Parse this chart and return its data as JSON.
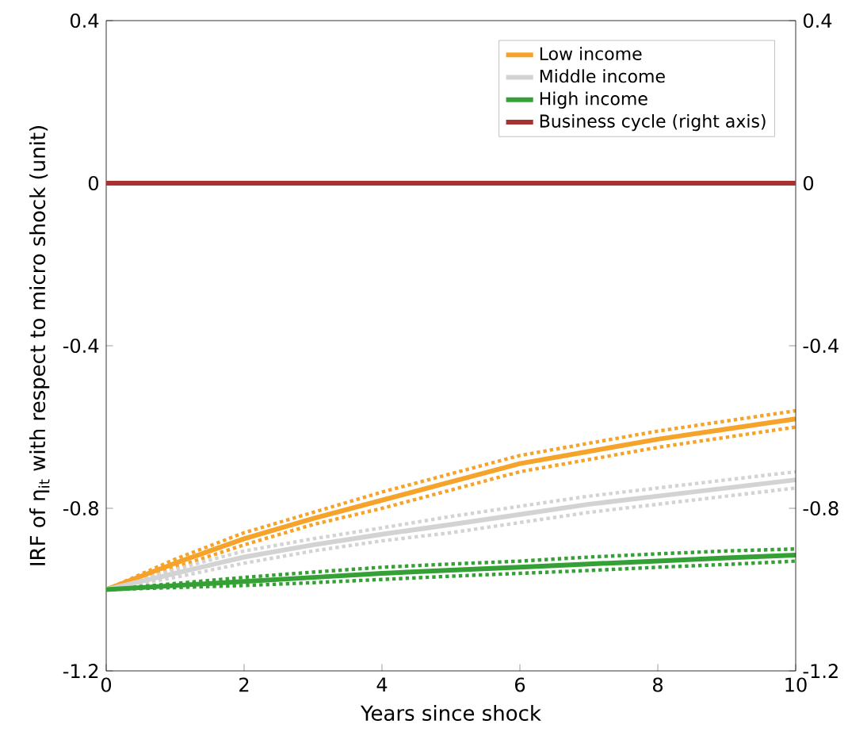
{
  "chart_data": {
    "type": "line",
    "xlabel": "Years since shock",
    "ylabel": "IRF of η$_{it}$ with respect to micro shock (unit)",
    "x": [
      0,
      1,
      2,
      3,
      4,
      5,
      6,
      7,
      8,
      9,
      10
    ],
    "xlim": [
      0,
      10
    ],
    "xticks": [
      0,
      2,
      4,
      6,
      8,
      10
    ],
    "ylim": [
      -1.2,
      0.4
    ],
    "yticks": [
      0.4,
      0,
      -0.4,
      -0.8,
      -1.2
    ],
    "y2lim": [
      -1.2,
      0.4
    ],
    "y2ticks": [
      0.4,
      0,
      -0.4,
      -0.8,
      -1.2
    ],
    "legend": "top right",
    "series": [
      {
        "name": "Low income",
        "color": "#f5a32a",
        "values": [
          -1,
          -0.935,
          -0.875,
          -0.825,
          -0.78,
          -0.735,
          -0.69,
          -0.66,
          -0.63,
          -0.605,
          -0.58
        ]
      },
      {
        "name": "Middle income",
        "color": "#d3d3d3",
        "values": [
          -1,
          -0.96,
          -0.92,
          -0.89,
          -0.864,
          -0.84,
          -0.815,
          -0.79,
          -0.77,
          -0.75,
          -0.73
        ]
      },
      {
        "name": "High income",
        "color": "#35a035",
        "values": [
          -1,
          -0.99,
          -0.98,
          -0.97,
          -0.96,
          -0.952,
          -0.945,
          -0.937,
          -0.93,
          -0.922,
          -0.915
        ]
      },
      {
        "name": "Business cycle (right axis)",
        "color": "#a83232",
        "axis": "y2",
        "values": [
          0,
          0,
          0,
          0,
          0,
          0,
          0,
          0,
          0,
          0,
          0
        ]
      },
      {
        "color": "#f5a32a",
        "line_style": "dotted",
        "values": [
          -1,
          -0.945,
          -0.89,
          -0.84,
          -0.8,
          -0.755,
          -0.71,
          -0.68,
          -0.65,
          -0.625,
          -0.6
        ]
      },
      {
        "color": "#f5a32a",
        "line_style": "dotted",
        "values": [
          -1,
          -0.925,
          -0.86,
          -0.81,
          -0.76,
          -0.715,
          -0.67,
          -0.64,
          -0.61,
          -0.585,
          -0.56
        ]
      },
      {
        "color": "#d3d3d3",
        "line_style": "dotted",
        "values": [
          -1,
          -0.97,
          -0.935,
          -0.905,
          -0.88,
          -0.86,
          -0.835,
          -0.81,
          -0.79,
          -0.77,
          -0.75
        ]
      },
      {
        "color": "#d3d3d3",
        "line_style": "dotted",
        "values": [
          -1,
          -0.95,
          -0.905,
          -0.875,
          -0.848,
          -0.82,
          -0.795,
          -0.77,
          -0.75,
          -0.73,
          -0.71
        ]
      },
      {
        "color": "#35a035",
        "line_style": "dotted",
        "values": [
          -1,
          -0.995,
          -0.99,
          -0.983,
          -0.975,
          -0.967,
          -0.96,
          -0.953,
          -0.945,
          -0.938,
          -0.93
        ]
      },
      {
        "color": "#35a035",
        "line_style": "dotted",
        "values": [
          -1,
          -0.985,
          -0.97,
          -0.957,
          -0.945,
          -0.937,
          -0.93,
          -0.92,
          -0.912,
          -0.905,
          -0.9
        ]
      }
    ]
  }
}
